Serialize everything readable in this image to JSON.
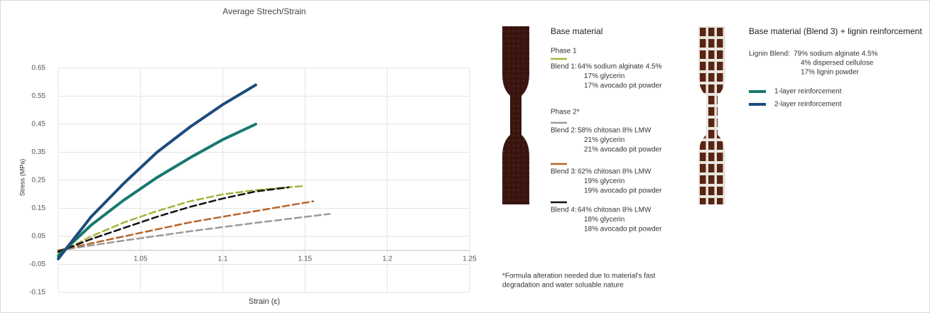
{
  "chart_data": {
    "type": "line",
    "title": "Average Strech/Strain",
    "x_label": "Strain (ε)",
    "y_label": "Stress (MPa)",
    "xlim": [
      1.0,
      1.25
    ],
    "xticks": [
      1.05,
      1.1,
      1.15,
      1.2,
      1.25
    ],
    "ylim": [
      -0.15,
      0.65
    ],
    "yticks": [
      -0.15,
      -0.05,
      0.05,
      0.15,
      0.25,
      0.35,
      0.45,
      0.55,
      0.65
    ],
    "grid": true,
    "series": [
      {
        "name": "Blend 1:",
        "color": "#a9b23c",
        "style": "dashed",
        "composition": [
          "64%  sodium alginate 4.5%",
          "17% glycerin",
          "17% avocado pit powder"
        ],
        "x": [
          1.0,
          1.02,
          1.04,
          1.06,
          1.08,
          1.1,
          1.12,
          1.15
        ],
        "values": [
          -0.01,
          0.05,
          0.1,
          0.14,
          0.175,
          0.2,
          0.215,
          0.23
        ]
      },
      {
        "name": "Blend 2:",
        "color": "#9a9a9a",
        "style": "dashed",
        "composition": [
          "58%  chitosan 8% LMW",
          "21% glycerin",
          "21% avocado pit powder"
        ],
        "x": [
          1.0,
          1.04,
          1.08,
          1.12,
          1.165
        ],
        "values": [
          0.0,
          0.035,
          0.068,
          0.098,
          0.13
        ]
      },
      {
        "name": "Blend 3:",
        "color": "#b5652a",
        "style": "dashed",
        "composition": [
          "62%  chitosan 8% LMW",
          "19% glycerin",
          "19% avocado pit powder"
        ],
        "x": [
          1.0,
          1.04,
          1.08,
          1.12,
          1.155
        ],
        "values": [
          0.0,
          0.05,
          0.1,
          0.14,
          0.175
        ]
      },
      {
        "name": "Blend 4:",
        "color": "#111111",
        "style": "dashed",
        "composition": [
          "64%  chitosan 8% LMW",
          "18% glycerin",
          "18% avocado pit powder"
        ],
        "x": [
          1.0,
          1.02,
          1.04,
          1.06,
          1.08,
          1.1,
          1.12,
          1.14
        ],
        "values": [
          -0.005,
          0.04,
          0.08,
          0.12,
          0.155,
          0.185,
          0.21,
          0.225
        ]
      },
      {
        "name": "1-layer reinforcement",
        "color": "#17796f",
        "style": "solid",
        "x": [
          1.0,
          1.02,
          1.04,
          1.06,
          1.08,
          1.1,
          1.12
        ],
        "values": [
          -0.02,
          0.09,
          0.18,
          0.26,
          0.33,
          0.395,
          0.45
        ]
      },
      {
        "name": "2-layer reinforcement",
        "color": "#1d4c7c",
        "style": "solid",
        "x": [
          1.0,
          1.02,
          1.04,
          1.06,
          1.08,
          1.1,
          1.12
        ],
        "values": [
          -0.03,
          0.12,
          0.24,
          0.35,
          0.44,
          0.52,
          0.59
        ]
      }
    ]
  },
  "panel": {
    "base_title": "Base material",
    "phase1": "Phase 1",
    "phase2": "Phase 2*",
    "footnote": [
      "*Formula alteration needed due to material's fast",
      "degradation and water soluable nature"
    ],
    "reinforced_title": "Base material (Blend 3) + lignin reinforcement",
    "lignin_label": "Lignin Blend:",
    "lignin_lines": [
      "79%  sodium alginate 4.5%",
      "4%   dispersed cellulose",
      "17% lignin powder"
    ]
  }
}
